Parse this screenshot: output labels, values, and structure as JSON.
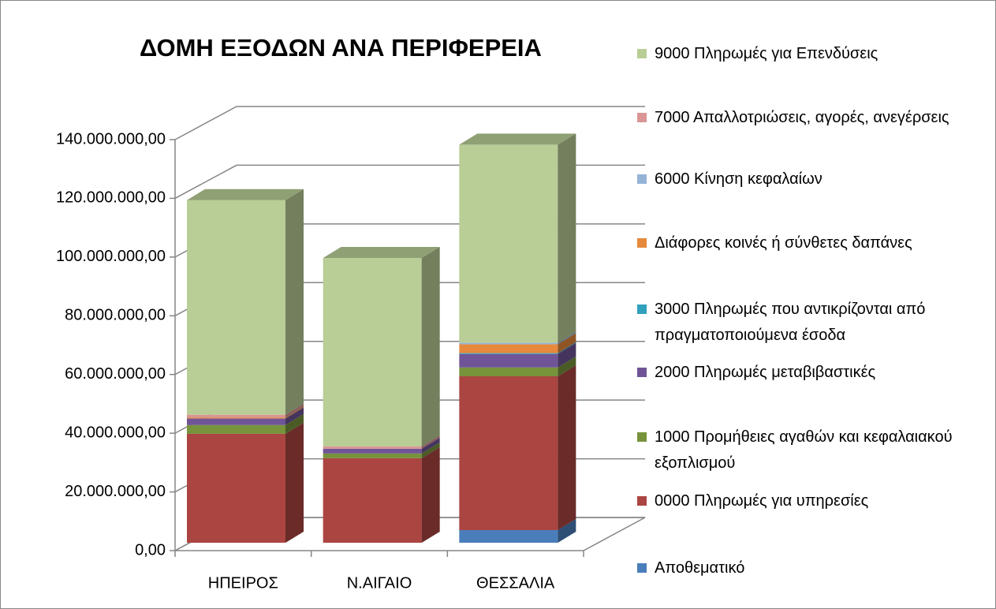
{
  "chart_data": {
    "type": "bar3d_stacked",
    "title": "ΔΟΜΗ ΕΞΟΔΩΝ ΑΝΑ ΠΕΡΙΦΕΡΕΙΑ",
    "categories": [
      "ΗΠΕΙΡΟΣ",
      "Ν.ΑΙΓΑΙΟ",
      "ΘΕΣΣΑΛΙΑ"
    ],
    "ylim": [
      0,
      140000000
    ],
    "yticks": [
      {
        "value": 0,
        "label": "0,00"
      },
      {
        "value": 20000000,
        "label": "20.000.000,00"
      },
      {
        "value": 40000000,
        "label": "40.000.000,00"
      },
      {
        "value": 60000000,
        "label": "60.000.000,00"
      },
      {
        "value": 80000000,
        "label": "80.000.000,00"
      },
      {
        "value": 100000000,
        "label": "100.000.000,00"
      },
      {
        "value": 120000000,
        "label": "120.000.000,00"
      },
      {
        "value": 140000000,
        "label": "140.000.000,00"
      }
    ],
    "grid": true,
    "series": [
      {
        "name": "Αποθεματικό",
        "color": "#4a7ebb",
        "values": [
          0,
          0,
          4300000
        ]
      },
      {
        "name": "0000 Πληρωμές για υπηρεσίες",
        "color": "#ab4542",
        "values": [
          37100000,
          28800000,
          52400000
        ]
      },
      {
        "name": "1000 Προμήθειες αγαθών και κεφαλαιακού εξοπλισμού",
        "color": "#77933c",
        "values": [
          3000000,
          1600000,
          3000000
        ]
      },
      {
        "name": "2000 Πληρωμές μεταβιβαστικές",
        "color": "#6f5597",
        "values": [
          2200000,
          1600000,
          4600000
        ]
      },
      {
        "name": "3000 Πληρωμές που αντικρίζονται από πραγματοποιούμενα έσοδα",
        "color": "#31a0bd",
        "values": [
          0,
          0,
          300000
        ]
      },
      {
        "name": "Διάφορες κοινές ή σύνθετες δαπάνες",
        "color": "#e6893c",
        "values": [
          300000,
          0,
          3000000
        ]
      },
      {
        "name": "6000 Κίνηση κεφαλαίων",
        "color": "#95b3d7",
        "values": [
          0,
          0,
          500000
        ]
      },
      {
        "name": "7000 Απαλλοτριώσεις, αγορές, ανεγέρσεις",
        "color": "#d99694",
        "values": [
          1000000,
          800000,
          0
        ]
      },
      {
        "name": "9000 Πληρωμές για Επενδύσεις",
        "color": "#b9cd96",
        "values": [
          73100000,
          64200000,
          67500000
        ]
      }
    ]
  }
}
